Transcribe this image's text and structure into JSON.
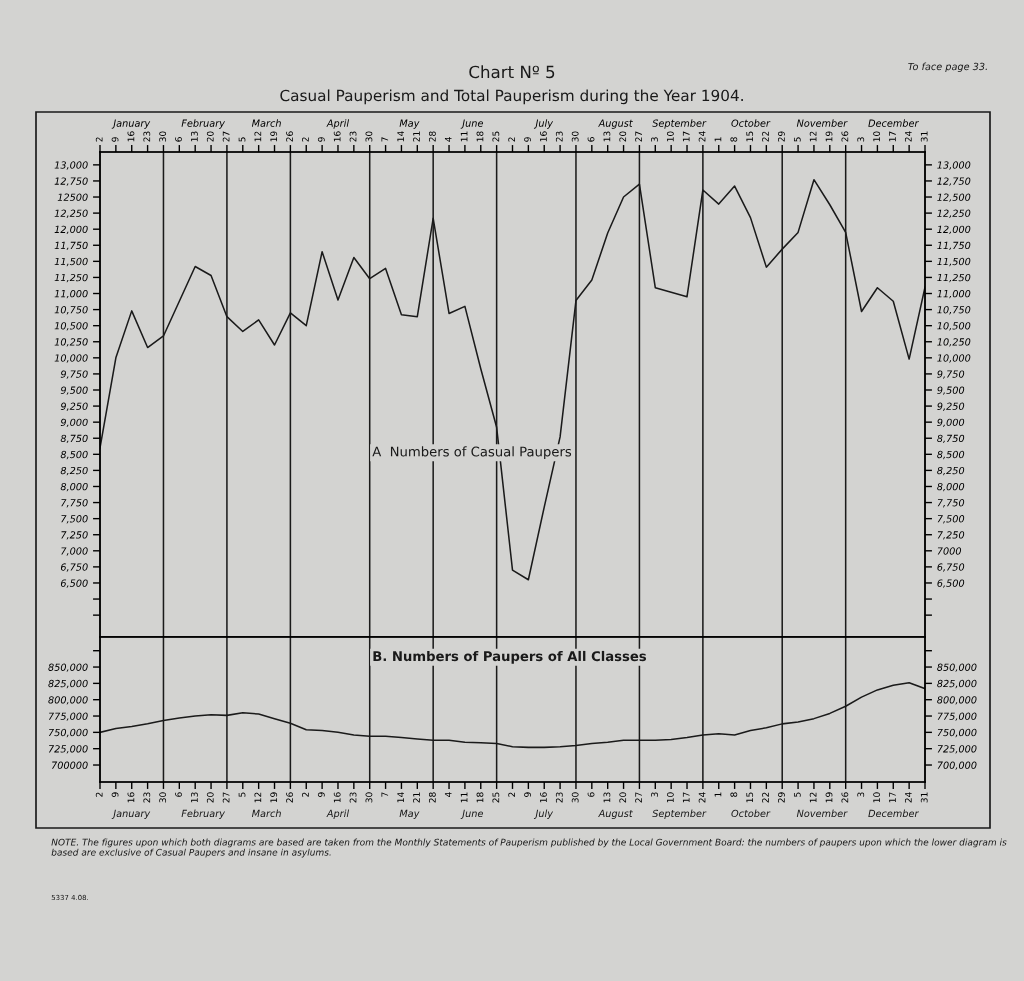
{
  "chart_data": [
    {
      "type": "line",
      "title": "Chart Nº 5",
      "subtitle": "Casual Pauperism and Total Pauperism during the Year 1904.",
      "x": [
        "1904-01-02",
        "1904-01-09",
        "1904-01-16",
        "1904-01-23",
        "1904-01-30",
        "1904-02-06",
        "1904-02-13",
        "1904-02-20",
        "1904-02-27",
        "1904-03-05",
        "1904-03-12",
        "1904-03-19",
        "1904-03-26",
        "1904-04-02",
        "1904-04-09",
        "1904-04-16",
        "1904-04-23",
        "1904-04-30",
        "1904-05-07",
        "1904-05-14",
        "1904-05-21",
        "1904-05-28",
        "1904-06-04",
        "1904-06-11",
        "1904-06-18",
        "1904-06-25",
        "1904-07-02",
        "1904-07-09",
        "1904-07-16",
        "1904-07-23",
        "1904-07-30",
        "1904-08-06",
        "1904-08-13",
        "1904-08-20",
        "1904-08-27",
        "1904-09-03",
        "1904-09-10",
        "1904-09-17",
        "1904-09-24",
        "1904-10-01",
        "1904-10-08",
        "1904-10-15",
        "1904-10-22",
        "1904-10-29",
        "1904-11-05",
        "1904-11-12",
        "1904-11-19",
        "1904-11-26",
        "1904-12-03",
        "1904-12-10",
        "1904-12-17",
        "1904-12-24",
        "1904-12-31"
      ],
      "xlim": [
        "1904-01-02",
        "1904-12-31"
      ],
      "xticks": [
        {
          "value": "1904-01-02",
          "label": "2"
        },
        {
          "value": "1904-01-09",
          "label": "9"
        },
        {
          "value": "1904-01-16",
          "label": "16"
        },
        {
          "value": "1904-01-23",
          "label": "23"
        },
        {
          "value": "1904-01-30",
          "label": "30"
        },
        {
          "value": "1904-02-06",
          "label": "6"
        },
        {
          "value": "1904-02-13",
          "label": "13"
        },
        {
          "value": "1904-02-20",
          "label": "20"
        },
        {
          "value": "1904-02-27",
          "label": "27"
        },
        {
          "value": "1904-03-05",
          "label": "5"
        },
        {
          "value": "1904-03-12",
          "label": "12"
        },
        {
          "value": "1904-03-19",
          "label": "19"
        },
        {
          "value": "1904-03-26",
          "label": "26"
        },
        {
          "value": "1904-04-02",
          "label": "2"
        },
        {
          "value": "1904-04-09",
          "label": "9"
        },
        {
          "value": "1904-04-16",
          "label": "16"
        },
        {
          "value": "1904-04-23",
          "label": "23"
        },
        {
          "value": "1904-04-30",
          "label": "30"
        },
        {
          "value": "1904-05-07",
          "label": "7"
        },
        {
          "value": "1904-05-14",
          "label": "14"
        },
        {
          "value": "1904-05-21",
          "label": "21"
        },
        {
          "value": "1904-05-28",
          "label": "28"
        },
        {
          "value": "1904-06-04",
          "label": "4"
        },
        {
          "value": "1904-06-11",
          "label": "11"
        },
        {
          "value": "1904-06-18",
          "label": "18"
        },
        {
          "value": "1904-06-25",
          "label": "25"
        },
        {
          "value": "1904-07-02",
          "label": "2"
        },
        {
          "value": "1904-07-09",
          "label": "9"
        },
        {
          "value": "1904-07-16",
          "label": "16"
        },
        {
          "value": "1904-07-23",
          "label": "23"
        },
        {
          "value": "1904-07-30",
          "label": "30"
        },
        {
          "value": "1904-08-06",
          "label": "6"
        },
        {
          "value": "1904-08-13",
          "label": "13"
        },
        {
          "value": "1904-08-20",
          "label": "20"
        },
        {
          "value": "1904-08-27",
          "label": "27"
        },
        {
          "value": "1904-09-03",
          "label": "3"
        },
        {
          "value": "1904-09-10",
          "label": "10"
        },
        {
          "value": "1904-09-17",
          "label": "17"
        },
        {
          "value": "1904-09-24",
          "label": "24"
        },
        {
          "value": "1904-10-01",
          "label": "1"
        },
        {
          "value": "1904-10-08",
          "label": "8"
        },
        {
          "value": "1904-10-15",
          "label": "15"
        },
        {
          "value": "1904-10-22",
          "label": "22"
        },
        {
          "value": "1904-10-29",
          "label": "29"
        },
        {
          "value": "1904-11-05",
          "label": "5"
        },
        {
          "value": "1904-11-12",
          "label": "12"
        },
        {
          "value": "1904-11-19",
          "label": "19"
        },
        {
          "value": "1904-11-26",
          "label": "26"
        },
        {
          "value": "1904-12-03",
          "label": "3"
        },
        {
          "value": "1904-12-10",
          "label": "10"
        },
        {
          "value": "1904-12-17",
          "label": "17"
        },
        {
          "value": "1904-12-24",
          "label": "24"
        },
        {
          "value": "1904-12-31",
          "label": "31"
        }
      ],
      "series": [
        {
          "color": "#1a1a1a",
          "values": [
            8600,
            10000,
            10730,
            10160,
            10340,
            10880,
            11420,
            11280,
            10640,
            10410,
            10590,
            10200,
            10700,
            10500,
            11650,
            10900,
            11560,
            11230,
            11390,
            10670,
            10640,
            12170,
            10690,
            10800,
            9830,
            8920,
            6700,
            6550,
            7680,
            8770,
            10890,
            11210,
            11940,
            12500,
            12700,
            11090,
            11020,
            10950,
            12610,
            12390,
            12670,
            12180,
            11410,
            11690,
            11950,
            12770,
            12380,
            11950,
            10720,
            11090,
            10880,
            9980,
            11100
          ]
        }
      ],
      "ylim": [
        5660,
        13200
      ],
      "yticks": [
        {
          "value": 6000,
          "label": null
        },
        {
          "value": 6250,
          "label": null
        },
        {
          "value": 6500,
          "label": "6,500"
        },
        {
          "value": 6750,
          "label": "6,750"
        },
        {
          "value": 7000,
          "label": "7,000"
        },
        {
          "value": 7250,
          "label": "7,250"
        },
        {
          "value": 7500,
          "label": "7,500"
        },
        {
          "value": 7750,
          "label": "7,750"
        },
        {
          "value": 8000,
          "label": "8,000"
        },
        {
          "value": 8250,
          "label": "8,250"
        },
        {
          "value": 8500,
          "label": "8,500"
        },
        {
          "value": 8750,
          "label": "8,750"
        },
        {
          "value": 9000,
          "label": "9,000"
        },
        {
          "value": 9250,
          "label": "9,250"
        },
        {
          "value": 9500,
          "label": "9,500"
        },
        {
          "value": 9750,
          "label": "9,750"
        },
        {
          "value": 10000,
          "label": "10,000"
        },
        {
          "value": 10250,
          "label": "10,250"
        },
        {
          "value": 10500,
          "label": "10,500"
        },
        {
          "value": 10750,
          "label": "10,750"
        },
        {
          "value": 11000,
          "label": "11,000"
        },
        {
          "value": 11250,
          "label": "11,250"
        },
        {
          "value": 11500,
          "label": "11,500"
        },
        {
          "value": 11750,
          "label": "11,750"
        },
        {
          "value": 12000,
          "label": "12,000"
        },
        {
          "value": 12250,
          "label": "12,250"
        },
        {
          "value": 12500,
          "label": "12500"
        },
        {
          "value": 12750,
          "label": "12,750"
        },
        {
          "value": 13000,
          "label": "13,000"
        }
      ],
      "y2lim": [
        5660,
        13200
      ],
      "y2ticks": [
        {
          "value": 6000,
          "label": null
        },
        {
          "value": 6250,
          "label": null
        },
        {
          "value": 6500,
          "label": "6,500"
        },
        {
          "value": 6750,
          "label": "6,750"
        },
        {
          "value": 7000,
          "label": "7000"
        },
        {
          "value": 7250,
          "label": "7,250"
        },
        {
          "value": 7500,
          "label": "7,500"
        },
        {
          "value": 7750,
          "label": "7,750"
        },
        {
          "value": 8000,
          "label": "8,000"
        },
        {
          "value": 8250,
          "label": "8,250"
        },
        {
          "value": 8500,
          "label": "8,500"
        },
        {
          "value": 8750,
          "label": "8,750"
        },
        {
          "value": 9000,
          "label": "9,000"
        },
        {
          "value": 9250,
          "label": "9,250"
        },
        {
          "value": 9500,
          "label": "9,500"
        },
        {
          "value": 9750,
          "label": "9,750"
        },
        {
          "value": 10000,
          "label": "10,000"
        },
        {
          "value": 10250,
          "label": "10,250"
        },
        {
          "value": 10500,
          "label": "10,500"
        },
        {
          "value": 10750,
          "label": "10,750"
        },
        {
          "value": 11000,
          "label": "11,000"
        },
        {
          "value": 11250,
          "label": "11,250"
        },
        {
          "value": 11500,
          "label": "11,500"
        },
        {
          "value": 11750,
          "label": "11,750"
        },
        {
          "value": 12000,
          "label": "12,000"
        },
        {
          "value": 12250,
          "label": "12,250"
        },
        {
          "value": 12500,
          "label": "12,500"
        },
        {
          "value": 12750,
          "label": "12,750"
        },
        {
          "value": 13000,
          "label": "13,000"
        }
      ],
      "ref_lines": [
        {
          "axis": "x",
          "value": "1904-01-30"
        },
        {
          "axis": "x",
          "value": "1904-02-27"
        },
        {
          "axis": "x",
          "value": "1904-03-26"
        },
        {
          "axis": "x",
          "value": "1904-04-30"
        },
        {
          "axis": "x",
          "value": "1904-05-28"
        },
        {
          "axis": "x",
          "value": "1904-06-25"
        },
        {
          "axis": "x",
          "value": "1904-07-30"
        },
        {
          "axis": "x",
          "value": "1904-08-27"
        },
        {
          "axis": "x",
          "value": "1904-09-24"
        },
        {
          "axis": "x",
          "value": "1904-10-29"
        },
        {
          "axis": "x",
          "value": "1904-11-26"
        }
      ],
      "annotations": [
        "A  Numbers of Casual Paupers",
        "January",
        "February",
        "March",
        "April",
        "May",
        "June",
        "July",
        "August",
        "September",
        "October",
        "November",
        "December",
        "To face page 33."
      ]
    },
    {
      "type": "line",
      "x": [
        "1904-01-02",
        "1904-01-09",
        "1904-01-16",
        "1904-01-23",
        "1904-01-30",
        "1904-02-06",
        "1904-02-13",
        "1904-02-20",
        "1904-02-27",
        "1904-03-05",
        "1904-03-12",
        "1904-03-19",
        "1904-03-26",
        "1904-04-02",
        "1904-04-09",
        "1904-04-16",
        "1904-04-23",
        "1904-04-30",
        "1904-05-07",
        "1904-05-14",
        "1904-05-21",
        "1904-05-28",
        "1904-06-04",
        "1904-06-11",
        "1904-06-18",
        "1904-06-25",
        "1904-07-02",
        "1904-07-09",
        "1904-07-16",
        "1904-07-23",
        "1904-07-30",
        "1904-08-06",
        "1904-08-13",
        "1904-08-20",
        "1904-08-27",
        "1904-09-03",
        "1904-09-10",
        "1904-09-17",
        "1904-09-24",
        "1904-10-01",
        "1904-10-08",
        "1904-10-15",
        "1904-10-22",
        "1904-10-29",
        "1904-11-05",
        "1904-11-12",
        "1904-11-19",
        "1904-11-26",
        "1904-12-03",
        "1904-12-10",
        "1904-12-17",
        "1904-12-24",
        "1904-12-31"
      ],
      "xlim": [
        "1904-01-02",
        "1904-12-31"
      ],
      "xticks": [
        {
          "value": "1904-01-02",
          "label": "2"
        },
        {
          "value": "1904-01-09",
          "label": "9"
        },
        {
          "value": "1904-01-16",
          "label": "16"
        },
        {
          "value": "1904-01-23",
          "label": "23"
        },
        {
          "value": "1904-01-30",
          "label": "30"
        },
        {
          "value": "1904-02-06",
          "label": "6"
        },
        {
          "value": "1904-02-13",
          "label": "13"
        },
        {
          "value": "1904-02-20",
          "label": "20"
        },
        {
          "value": "1904-02-27",
          "label": "27"
        },
        {
          "value": "1904-03-05",
          "label": "5"
        },
        {
          "value": "1904-03-12",
          "label": "12"
        },
        {
          "value": "1904-03-19",
          "label": "19"
        },
        {
          "value": "1904-03-26",
          "label": "26"
        },
        {
          "value": "1904-04-02",
          "label": "2"
        },
        {
          "value": "1904-04-09",
          "label": "9"
        },
        {
          "value": "1904-04-16",
          "label": "16"
        },
        {
          "value": "1904-04-23",
          "label": "23"
        },
        {
          "value": "1904-04-30",
          "label": "30"
        },
        {
          "value": "1904-05-07",
          "label": "7"
        },
        {
          "value": "1904-05-14",
          "label": "14"
        },
        {
          "value": "1904-05-21",
          "label": "21"
        },
        {
          "value": "1904-05-28",
          "label": "28"
        },
        {
          "value": "1904-06-04",
          "label": "4"
        },
        {
          "value": "1904-06-11",
          "label": "11"
        },
        {
          "value": "1904-06-18",
          "label": "18"
        },
        {
          "value": "1904-06-25",
          "label": "25"
        },
        {
          "value": "1904-07-02",
          "label": "2"
        },
        {
          "value": "1904-07-09",
          "label": "9"
        },
        {
          "value": "1904-07-16",
          "label": "16"
        },
        {
          "value": "1904-07-23",
          "label": "23"
        },
        {
          "value": "1904-07-30",
          "label": "30"
        },
        {
          "value": "1904-08-06",
          "label": "6"
        },
        {
          "value": "1904-08-13",
          "label": "13"
        },
        {
          "value": "1904-08-20",
          "label": "20"
        },
        {
          "value": "1904-08-27",
          "label": "27"
        },
        {
          "value": "1904-09-03",
          "label": "3"
        },
        {
          "value": "1904-09-10",
          "label": "10"
        },
        {
          "value": "1904-09-17",
          "label": "17"
        },
        {
          "value": "1904-09-24",
          "label": "24"
        },
        {
          "value": "1904-10-01",
          "label": "1"
        },
        {
          "value": "1904-10-08",
          "label": "8"
        },
        {
          "value": "1904-10-15",
          "label": "15"
        },
        {
          "value": "1904-10-22",
          "label": "22"
        },
        {
          "value": "1904-10-29",
          "label": "29"
        },
        {
          "value": "1904-11-05",
          "label": "5"
        },
        {
          "value": "1904-11-12",
          "label": "12"
        },
        {
          "value": "1904-11-19",
          "label": "19"
        },
        {
          "value": "1904-11-26",
          "label": "26"
        },
        {
          "value": "1904-12-03",
          "label": "3"
        },
        {
          "value": "1904-12-10",
          "label": "10"
        },
        {
          "value": "1904-12-17",
          "label": "17"
        },
        {
          "value": "1904-12-24",
          "label": "24"
        },
        {
          "value": "1904-12-31",
          "label": "31"
        }
      ],
      "series": [
        {
          "color": "#1a1a1a",
          "values": [
            750000,
            756000,
            759000,
            763000,
            768000,
            772000,
            775000,
            777000,
            776000,
            780000,
            778000,
            771000,
            764000,
            754000,
            753000,
            750000,
            746000,
            744000,
            744000,
            742000,
            740000,
            738000,
            738000,
            735000,
            734000,
            733000,
            728000,
            727000,
            727000,
            728000,
            730000,
            733000,
            735000,
            738000,
            738000,
            738000,
            739000,
            742000,
            746000,
            748000,
            746000,
            753000,
            757000,
            763000,
            766000,
            771000,
            779000,
            790000,
            804000,
            815000,
            822000,
            826000,
            817000
          ]
        }
      ],
      "ylim": [
        674000,
        896000
      ],
      "yticks": [
        {
          "value": 700000,
          "label": "700000"
        },
        {
          "value": 725000,
          "label": "725,000"
        },
        {
          "value": 750000,
          "label": "750,000"
        },
        {
          "value": 775000,
          "label": "775,000"
        },
        {
          "value": 800000,
          "label": "800,000"
        },
        {
          "value": 825000,
          "label": "825,000"
        },
        {
          "value": 850000,
          "label": "850,000"
        },
        {
          "value": 875000,
          "label": null
        }
      ],
      "y2lim": [
        674000,
        896000
      ],
      "y2ticks": [
        {
          "value": 700000,
          "label": "700,000"
        },
        {
          "value": 725000,
          "label": "725,000"
        },
        {
          "value": 750000,
          "label": "750,000"
        },
        {
          "value": 775000,
          "label": "775,000"
        },
        {
          "value": 800000,
          "label": "800,000"
        },
        {
          "value": 825000,
          "label": "825,000"
        },
        {
          "value": 850000,
          "label": "850,000"
        },
        {
          "value": 875000,
          "label": null
        }
      ],
      "ref_lines": [
        {
          "axis": "x",
          "value": "1904-01-30"
        },
        {
          "axis": "x",
          "value": "1904-02-27"
        },
        {
          "axis": "x",
          "value": "1904-03-26"
        },
        {
          "axis": "x",
          "value": "1904-04-30"
        },
        {
          "axis": "x",
          "value": "1904-05-28"
        },
        {
          "axis": "x",
          "value": "1904-06-25"
        },
        {
          "axis": "x",
          "value": "1904-07-30"
        },
        {
          "axis": "x",
          "value": "1904-08-27"
        },
        {
          "axis": "x",
          "value": "1904-09-24"
        },
        {
          "axis": "x",
          "value": "1904-10-29"
        },
        {
          "axis": "x",
          "value": "1904-11-26"
        }
      ],
      "annotations": [
        "B. Numbers of Paupers of All Classes",
        "January",
        "February",
        "March",
        "April",
        "May",
        "June",
        "July",
        "August",
        "September",
        "October",
        "November",
        "December",
        "NOTE. The figures upon which both diagrams are based are taken from the Monthly Statements of Pauperism published by the Local Government Board: the numbers of paupers upon which the lower diagram is based are exclusive of Casual Paupers and insane in asylums.",
        "5337 4.08."
      ]
    }
  ]
}
